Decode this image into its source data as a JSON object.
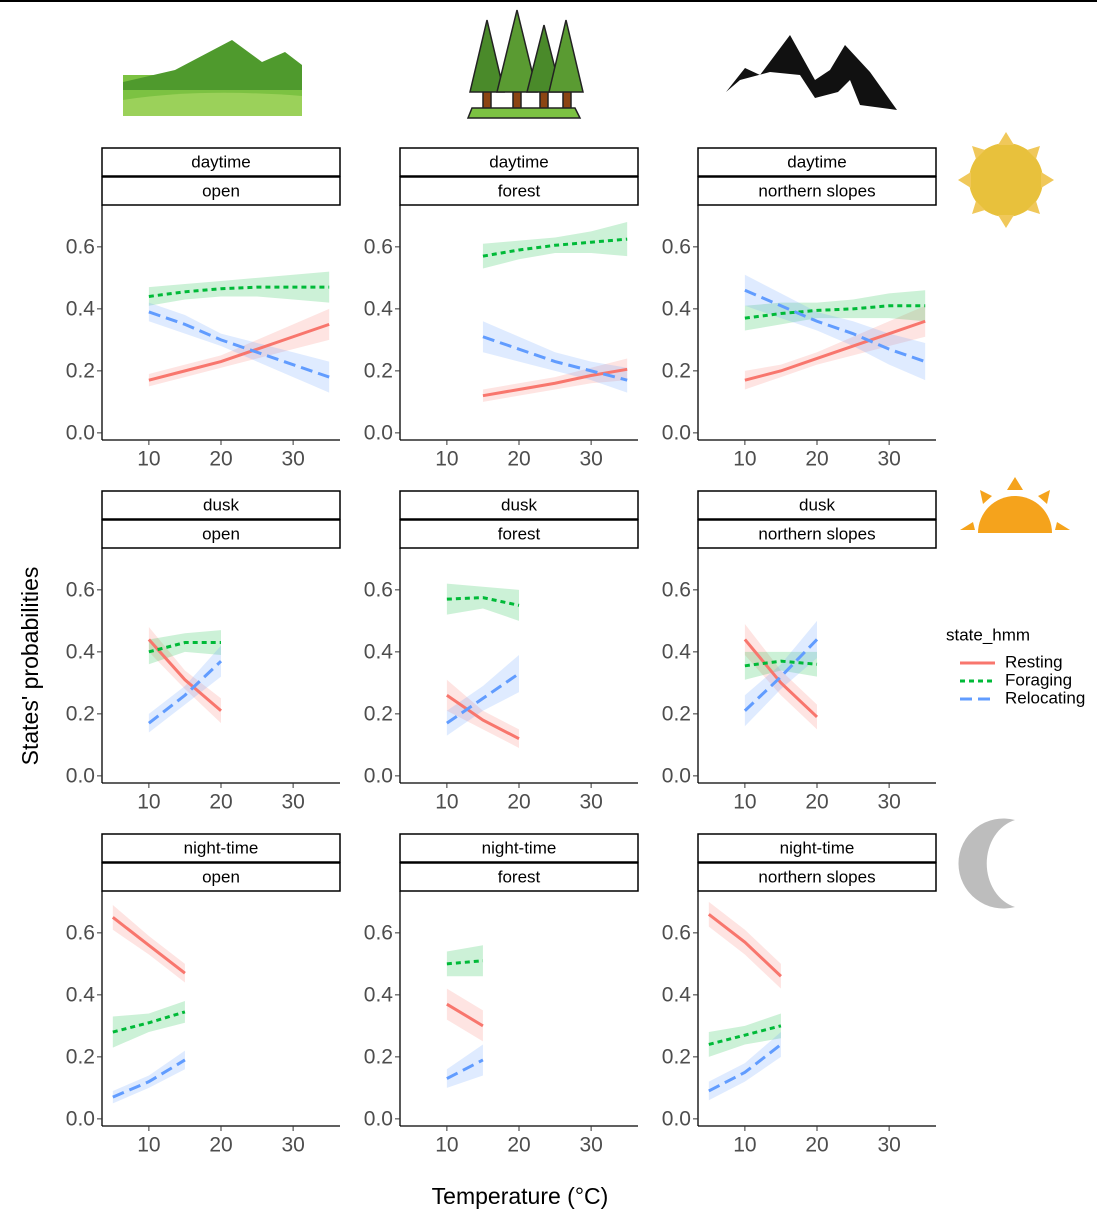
{
  "figure": {
    "xlabel": "Temperature (°C)",
    "ylabel": "States' probabilities",
    "legend_title": "state_hmm"
  },
  "chart_data": [
    {
      "type": "line",
      "strips": [
        "daytime",
        "open"
      ],
      "xlim": [
        3.5,
        36.5
      ],
      "ylim": [
        -0.023,
        0.735
      ],
      "xticks": [
        10,
        20,
        30
      ],
      "yticks": [
        {
          "value": 0,
          "label": "0.0"
        },
        0.2,
        0.4,
        0.6
      ],
      "x": [
        10,
        15,
        20,
        25,
        30,
        35
      ],
      "series": [
        {
          "name": "Resting",
          "color": "#F8766D",
          "linestyle": "solid",
          "values": [
            0.17,
            0.2,
            0.23,
            0.27,
            0.31,
            0.35
          ],
          "lower": [
            0.15,
            0.18,
            0.21,
            0.24,
            0.27,
            0.3
          ],
          "upper": [
            0.19,
            0.22,
            0.25,
            0.3,
            0.35,
            0.4
          ]
        },
        {
          "name": "Foraging",
          "color": "#00BA38",
          "linestyle": "dotted",
          "values": [
            0.44,
            0.455,
            0.465,
            0.47,
            0.47,
            0.47
          ],
          "lower": [
            0.41,
            0.43,
            0.44,
            0.44,
            0.43,
            0.42
          ],
          "upper": [
            0.47,
            0.48,
            0.49,
            0.5,
            0.51,
            0.52
          ]
        },
        {
          "name": "Relocating",
          "color": "#619CFF",
          "linestyle": "dashed",
          "values": [
            0.39,
            0.35,
            0.3,
            0.26,
            0.22,
            0.18
          ],
          "lower": [
            0.36,
            0.32,
            0.28,
            0.23,
            0.18,
            0.13
          ],
          "upper": [
            0.42,
            0.38,
            0.32,
            0.29,
            0.26,
            0.23
          ]
        }
      ]
    },
    {
      "type": "line",
      "strips": [
        "daytime",
        "forest"
      ],
      "xlim": [
        3.5,
        36.5
      ],
      "ylim": [
        -0.023,
        0.735
      ],
      "xticks": [
        10,
        20,
        30
      ],
      "yticks": [
        {
          "value": 0,
          "label": "0.0"
        },
        0.2,
        0.4,
        0.6
      ],
      "x": [
        15,
        20,
        25,
        30,
        35
      ],
      "series": [
        {
          "name": "Resting",
          "color": "#F8766D",
          "linestyle": "solid",
          "values": [
            0.12,
            0.14,
            0.16,
            0.185,
            0.205
          ],
          "lower": [
            0.1,
            0.12,
            0.14,
            0.16,
            0.17
          ],
          "upper": [
            0.14,
            0.16,
            0.18,
            0.21,
            0.24
          ]
        },
        {
          "name": "Foraging",
          "color": "#00BA38",
          "linestyle": "dotted",
          "values": [
            0.57,
            0.59,
            0.605,
            0.615,
            0.625
          ],
          "lower": [
            0.53,
            0.56,
            0.58,
            0.58,
            0.57
          ],
          "upper": [
            0.61,
            0.62,
            0.63,
            0.65,
            0.68
          ]
        },
        {
          "name": "Relocating",
          "color": "#619CFF",
          "linestyle": "dashed",
          "values": [
            0.31,
            0.27,
            0.23,
            0.2,
            0.17
          ],
          "lower": [
            0.26,
            0.23,
            0.2,
            0.17,
            0.13
          ],
          "upper": [
            0.36,
            0.31,
            0.26,
            0.23,
            0.21
          ]
        }
      ]
    },
    {
      "type": "line",
      "strips": [
        "daytime",
        "northern slopes"
      ],
      "xlim": [
        3.5,
        36.5
      ],
      "ylim": [
        -0.023,
        0.735
      ],
      "xticks": [
        10,
        20,
        30
      ],
      "yticks": [
        {
          "value": 0,
          "label": "0.0"
        },
        0.2,
        0.4,
        0.6
      ],
      "x": [
        10,
        15,
        20,
        25,
        30,
        35
      ],
      "series": [
        {
          "name": "Resting",
          "color": "#F8766D",
          "linestyle": "solid",
          "values": [
            0.17,
            0.2,
            0.24,
            0.28,
            0.32,
            0.36
          ],
          "lower": [
            0.14,
            0.18,
            0.22,
            0.25,
            0.28,
            0.31
          ],
          "upper": [
            0.2,
            0.22,
            0.26,
            0.31,
            0.36,
            0.41
          ]
        },
        {
          "name": "Foraging",
          "color": "#00BA38",
          "linestyle": "dotted",
          "values": [
            0.37,
            0.385,
            0.395,
            0.4,
            0.41,
            0.41
          ],
          "lower": [
            0.33,
            0.35,
            0.37,
            0.37,
            0.37,
            0.36
          ],
          "upper": [
            0.41,
            0.42,
            0.42,
            0.43,
            0.45,
            0.46
          ]
        },
        {
          "name": "Relocating",
          "color": "#619CFF",
          "linestyle": "dashed",
          "values": [
            0.46,
            0.41,
            0.36,
            0.32,
            0.27,
            0.23
          ],
          "lower": [
            0.41,
            0.37,
            0.33,
            0.28,
            0.22,
            0.17
          ],
          "upper": [
            0.51,
            0.45,
            0.39,
            0.36,
            0.32,
            0.29
          ]
        }
      ]
    },
    {
      "type": "line",
      "strips": [
        "dusk",
        "open"
      ],
      "xlim": [
        3.5,
        36.5
      ],
      "ylim": [
        -0.023,
        0.735
      ],
      "xticks": [
        10,
        20,
        30
      ],
      "yticks": [
        {
          "value": 0,
          "label": "0.0"
        },
        0.2,
        0.4,
        0.6
      ],
      "x": [
        10,
        15,
        20
      ],
      "series": [
        {
          "name": "Resting",
          "color": "#F8766D",
          "linestyle": "solid",
          "values": [
            0.44,
            0.31,
            0.21
          ],
          "lower": [
            0.4,
            0.28,
            0.17
          ],
          "upper": [
            0.48,
            0.34,
            0.25
          ]
        },
        {
          "name": "Foraging",
          "color": "#00BA38",
          "linestyle": "dotted",
          "values": [
            0.4,
            0.43,
            0.43
          ],
          "lower": [
            0.36,
            0.4,
            0.39
          ],
          "upper": [
            0.44,
            0.46,
            0.47
          ]
        },
        {
          "name": "Relocating",
          "color": "#619CFF",
          "linestyle": "dashed",
          "values": [
            0.17,
            0.26,
            0.37
          ],
          "lower": [
            0.14,
            0.23,
            0.32
          ],
          "upper": [
            0.2,
            0.29,
            0.42
          ]
        }
      ]
    },
    {
      "type": "line",
      "strips": [
        "dusk",
        "forest"
      ],
      "xlim": [
        3.5,
        36.5
      ],
      "ylim": [
        -0.023,
        0.735
      ],
      "xticks": [
        10,
        20,
        30
      ],
      "yticks": [
        {
          "value": 0,
          "label": "0.0"
        },
        0.2,
        0.4,
        0.6
      ],
      "x": [
        10,
        15,
        20
      ],
      "series": [
        {
          "name": "Resting",
          "color": "#F8766D",
          "linestyle": "solid",
          "values": [
            0.26,
            0.18,
            0.12
          ],
          "lower": [
            0.21,
            0.15,
            0.09
          ],
          "upper": [
            0.31,
            0.21,
            0.15
          ]
        },
        {
          "name": "Foraging",
          "color": "#00BA38",
          "linestyle": "dotted",
          "values": [
            0.57,
            0.575,
            0.55
          ],
          "lower": [
            0.52,
            0.54,
            0.5
          ],
          "upper": [
            0.62,
            0.61,
            0.6
          ]
        },
        {
          "name": "Relocating",
          "color": "#619CFF",
          "linestyle": "dashed",
          "values": [
            0.17,
            0.25,
            0.33
          ],
          "lower": [
            0.13,
            0.21,
            0.27
          ],
          "upper": [
            0.21,
            0.29,
            0.39
          ]
        }
      ]
    },
    {
      "type": "line",
      "strips": [
        "dusk",
        "northern slopes"
      ],
      "xlim": [
        3.5,
        36.5
      ],
      "ylim": [
        -0.023,
        0.735
      ],
      "xticks": [
        10,
        20,
        30
      ],
      "yticks": [
        {
          "value": 0,
          "label": "0.0"
        },
        0.2,
        0.4,
        0.6
      ],
      "x": [
        10,
        15,
        20
      ],
      "series": [
        {
          "name": "Resting",
          "color": "#F8766D",
          "linestyle": "solid",
          "values": [
            0.44,
            0.3,
            0.19
          ],
          "lower": [
            0.39,
            0.26,
            0.15
          ],
          "upper": [
            0.49,
            0.34,
            0.23
          ]
        },
        {
          "name": "Foraging",
          "color": "#00BA38",
          "linestyle": "dotted",
          "values": [
            0.355,
            0.37,
            0.36
          ],
          "lower": [
            0.31,
            0.34,
            0.32
          ],
          "upper": [
            0.4,
            0.4,
            0.4
          ]
        },
        {
          "name": "Relocating",
          "color": "#619CFF",
          "linestyle": "dashed",
          "values": [
            0.21,
            0.32,
            0.44
          ],
          "lower": [
            0.16,
            0.28,
            0.38
          ],
          "upper": [
            0.26,
            0.36,
            0.5
          ]
        }
      ]
    },
    {
      "type": "line",
      "strips": [
        "night-time",
        "open"
      ],
      "xlim": [
        3.5,
        36.5
      ],
      "ylim": [
        -0.023,
        0.735
      ],
      "xticks": [
        10,
        20,
        30
      ],
      "yticks": [
        {
          "value": 0,
          "label": "0.0"
        },
        0.2,
        0.4,
        0.6
      ],
      "x": [
        5,
        10,
        15
      ],
      "series": [
        {
          "name": "Resting",
          "color": "#F8766D",
          "linestyle": "solid",
          "values": [
            0.65,
            0.56,
            0.47
          ],
          "lower": [
            0.61,
            0.53,
            0.44
          ],
          "upper": [
            0.69,
            0.59,
            0.5
          ]
        },
        {
          "name": "Foraging",
          "color": "#00BA38",
          "linestyle": "dotted",
          "values": [
            0.28,
            0.31,
            0.345
          ],
          "lower": [
            0.23,
            0.28,
            0.31
          ],
          "upper": [
            0.33,
            0.34,
            0.38
          ]
        },
        {
          "name": "Relocating",
          "color": "#619CFF",
          "linestyle": "dashed",
          "values": [
            0.07,
            0.12,
            0.19
          ],
          "lower": [
            0.05,
            0.1,
            0.16
          ],
          "upper": [
            0.09,
            0.14,
            0.22
          ]
        }
      ]
    },
    {
      "type": "line",
      "strips": [
        "night-time",
        "forest"
      ],
      "xlim": [
        3.5,
        36.5
      ],
      "ylim": [
        -0.023,
        0.735
      ],
      "xticks": [
        10,
        20,
        30
      ],
      "yticks": [
        {
          "value": 0,
          "label": "0.0"
        },
        0.2,
        0.4,
        0.6
      ],
      "x": [
        10,
        15
      ],
      "series": [
        {
          "name": "Resting",
          "color": "#F8766D",
          "linestyle": "solid",
          "values": [
            0.37,
            0.3
          ],
          "lower": [
            0.32,
            0.25
          ],
          "upper": [
            0.42,
            0.35
          ]
        },
        {
          "name": "Foraging",
          "color": "#00BA38",
          "linestyle": "dotted",
          "values": [
            0.5,
            0.51
          ],
          "lower": [
            0.46,
            0.46
          ],
          "upper": [
            0.54,
            0.56
          ]
        },
        {
          "name": "Relocating",
          "color": "#619CFF",
          "linestyle": "dashed",
          "values": [
            0.13,
            0.19
          ],
          "lower": [
            0.1,
            0.14
          ],
          "upper": [
            0.16,
            0.24
          ]
        }
      ]
    },
    {
      "type": "line",
      "strips": [
        "night-time",
        "northern slopes"
      ],
      "xlim": [
        3.5,
        36.5
      ],
      "ylim": [
        -0.023,
        0.735
      ],
      "xticks": [
        10,
        20,
        30
      ],
      "yticks": [
        {
          "value": 0,
          "label": "0.0"
        },
        0.2,
        0.4,
        0.6
      ],
      "x": [
        5,
        10,
        15
      ],
      "series": [
        {
          "name": "Resting",
          "color": "#F8766D",
          "linestyle": "solid",
          "values": [
            0.66,
            0.57,
            0.46
          ],
          "lower": [
            0.62,
            0.53,
            0.42
          ],
          "upper": [
            0.7,
            0.61,
            0.5
          ]
        },
        {
          "name": "Foraging",
          "color": "#00BA38",
          "linestyle": "dotted",
          "values": [
            0.24,
            0.27,
            0.3
          ],
          "lower": [
            0.2,
            0.24,
            0.26
          ],
          "upper": [
            0.28,
            0.3,
            0.34
          ]
        },
        {
          "name": "Relocating",
          "color": "#619CFF",
          "linestyle": "dashed",
          "values": [
            0.09,
            0.15,
            0.24
          ],
          "lower": [
            0.06,
            0.12,
            0.2
          ],
          "upper": [
            0.12,
            0.18,
            0.28
          ]
        }
      ]
    }
  ]
}
